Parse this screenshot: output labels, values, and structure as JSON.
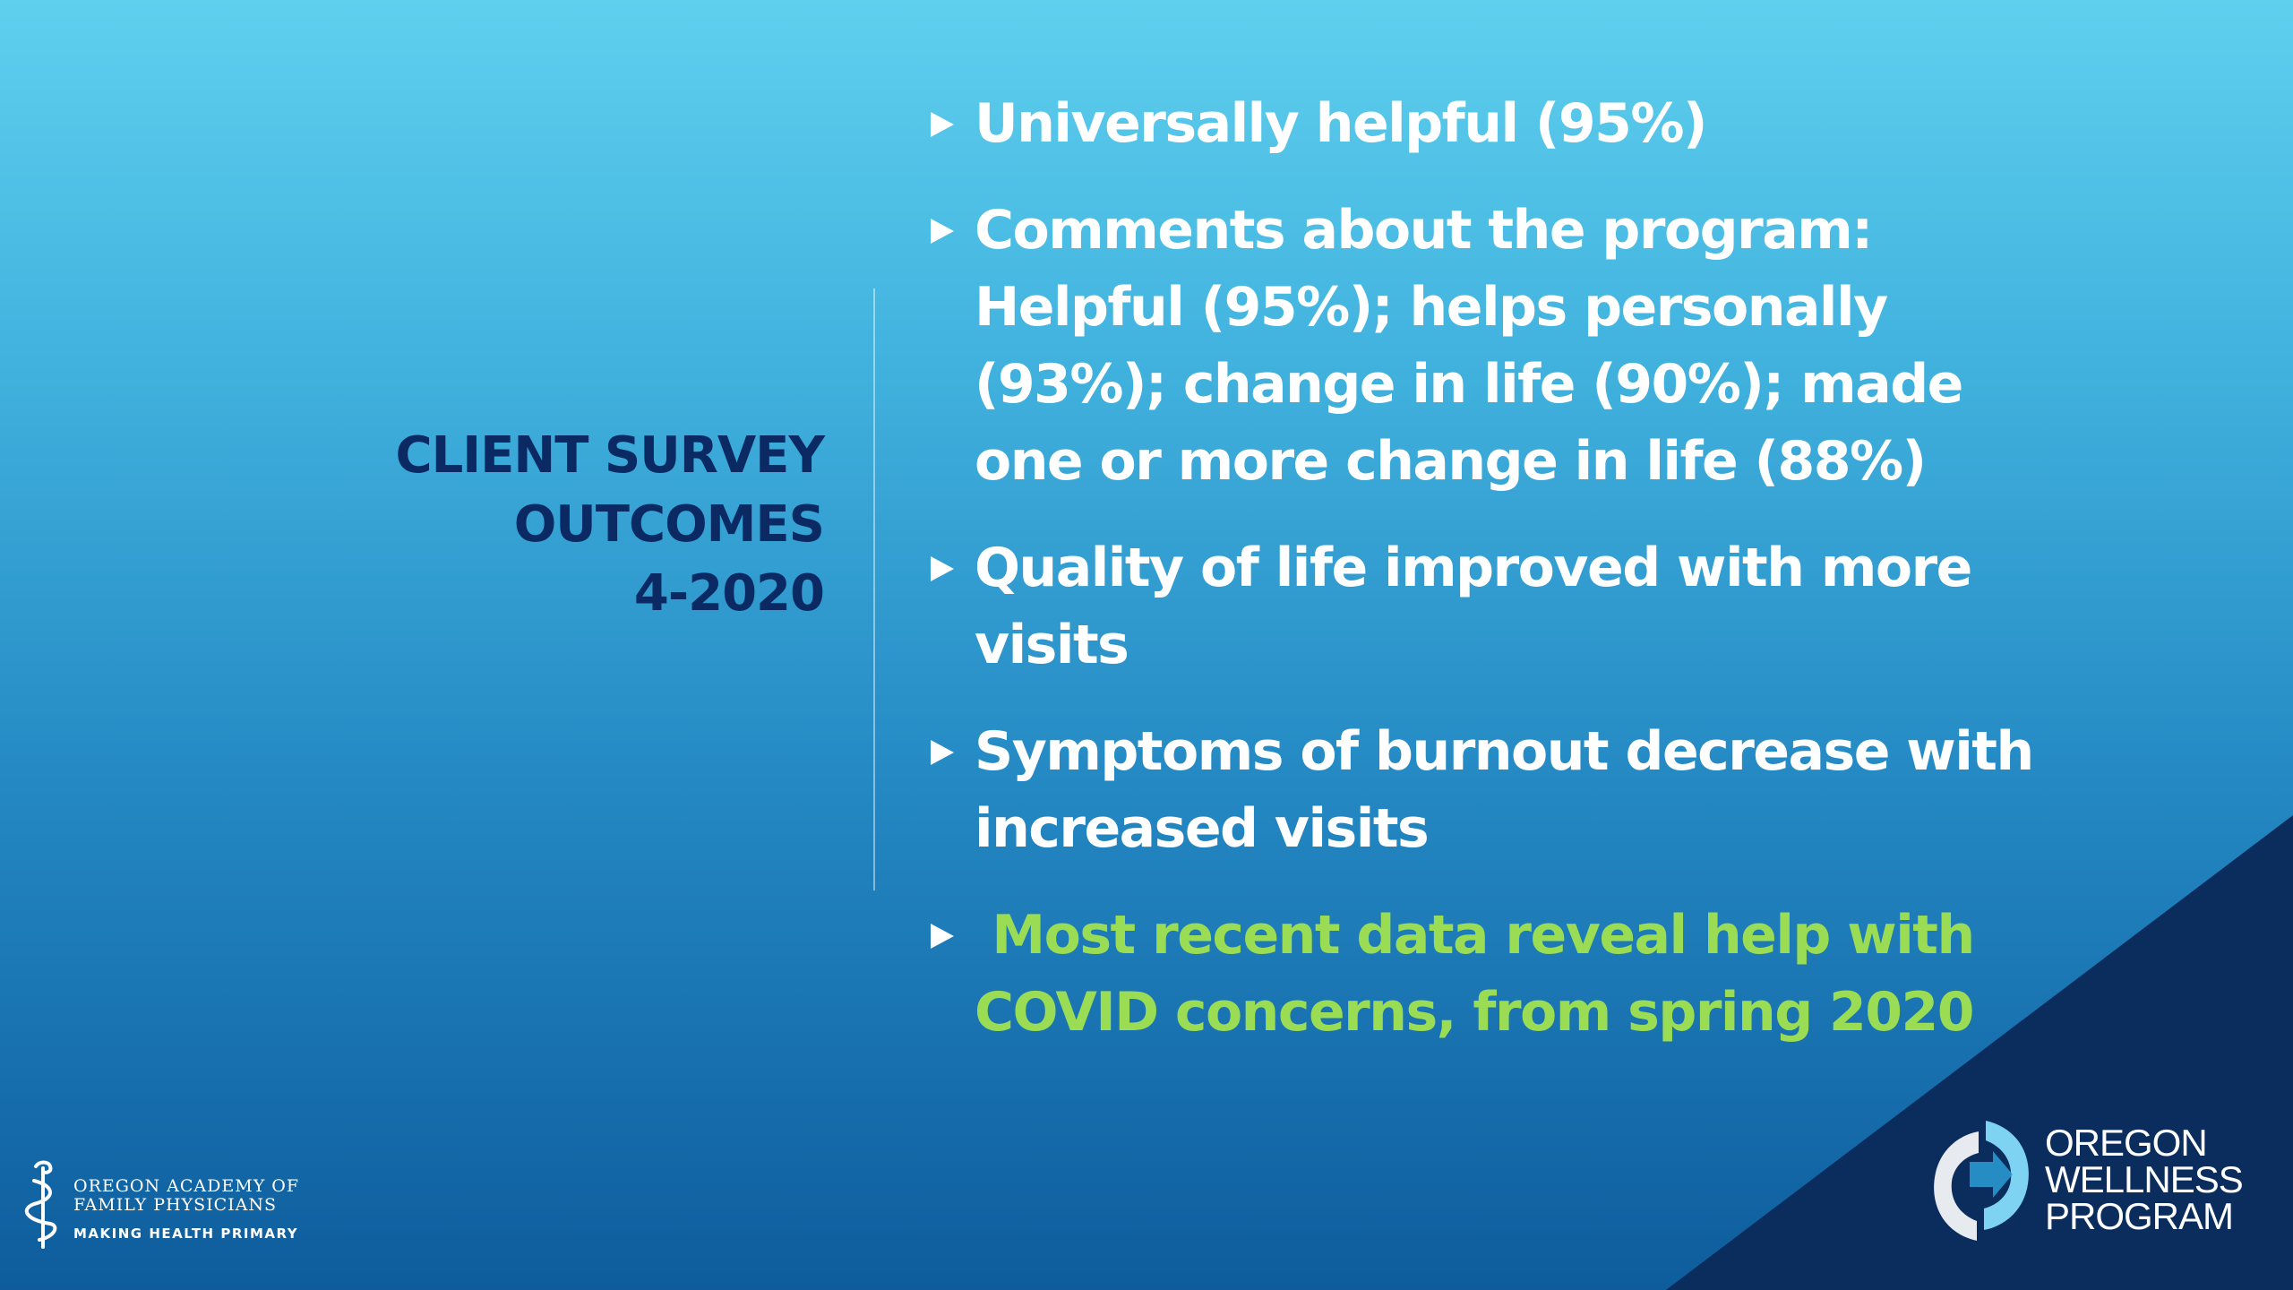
{
  "slide": {
    "title_lines": [
      "CLIENT SURVEY",
      "OUTCOMES",
      "4-2020"
    ],
    "bullets": [
      "Universally helpful (95%)",
      "Comments about the program: Helpful (95%); helps personally (93%); change in life (90%); made one or more change in life (88%)",
      "Quality of life improved with more visits",
      "Symptoms of burnout decrease with increased visits",
      " Most recent data reveal help with COVID concerns, from spring 2020"
    ]
  },
  "footer": {
    "oafp_logo": {
      "line1": "OREGON ACADEMY OF",
      "line2": "FAMILY PHYSICIANS",
      "tagline": "MAKING HEALTH PRIMARY"
    },
    "owp_logo": {
      "line1": "OREGON",
      "line2": "WELLNESS",
      "line3": "PROGRAM"
    }
  },
  "colors": {
    "title": "#0b2a64",
    "bullet_text": "#ffffff",
    "highlight_text": "#9bdc55",
    "corner_triangle": "#0a2d5e"
  },
  "icons": {
    "bullet": "triangle-right-icon",
    "oafp_emblem": "caduceus-icon",
    "owp_emblem": "circular-arrows-icon"
  }
}
